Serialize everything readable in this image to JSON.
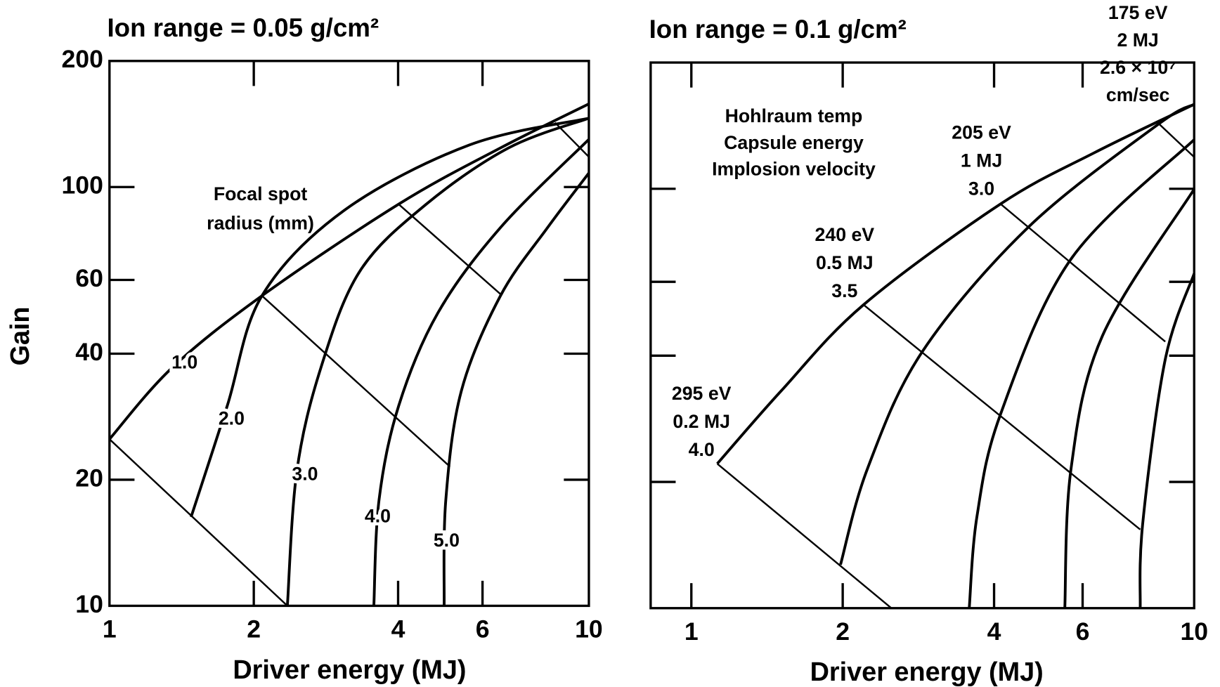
{
  "chart_data": [
    {
      "type": "line",
      "title": "Ion range = 0.05 g/cm²",
      "xlabel": "Driver energy (MJ)",
      "ylabel": "Gain",
      "xscale": "log",
      "yscale": "log",
      "xlim": [
        1,
        10
      ],
      "ylim": [
        10,
        200
      ],
      "xticks": [
        1,
        2,
        4,
        6,
        10
      ],
      "yticks": [
        10,
        20,
        40,
        60,
        100,
        200
      ],
      "ytick_labels": true,
      "color": "#000000",
      "series": [
        {
          "name": "1.0",
          "x": [
            1,
            1.35,
            2.08,
            4.01,
            6.54,
            10
          ],
          "values": [
            25,
            37,
            55,
            91,
            124,
            158
          ]
        },
        {
          "name": "2.0",
          "x": [
            1.48,
            1.76,
            2.08,
            3.09,
            5.63,
            10
          ],
          "values": [
            16.3,
            30,
            55,
            88,
            126,
            146
          ]
        },
        {
          "name": "3.0",
          "x": [
            2.35,
            2.46,
            2.76,
            3.33,
            4.58,
            6.8,
            10
          ],
          "values": [
            10,
            21,
            37,
            63,
            91,
            124,
            146
          ]
        },
        {
          "name": "4.0",
          "x": [
            3.56,
            3.65,
            4.01,
            4.84,
            6.54,
            10
          ],
          "values": [
            10,
            17.9,
            30,
            50,
            80,
            130
          ]
        },
        {
          "name": "5.0",
          "x": [
            4.99,
            5.03,
            5.42,
            6.54,
            8.2,
            10
          ],
          "values": [
            10,
            17.9,
            32.6,
            55,
            80,
            108
          ]
        }
      ],
      "cross_lines": [
        {
          "x": [
            1,
            2.35
          ],
          "values": [
            25,
            10
          ]
        },
        {
          "x": [
            2.08,
            5.13
          ],
          "values": [
            55,
            21.5
          ]
        },
        {
          "x": [
            4.01,
            6.54
          ],
          "values": [
            91,
            55.5
          ]
        },
        {
          "x": [
            8.5,
            10
          ],
          "values": [
            142.5,
            118
          ]
        }
      ],
      "annotations": [
        [
          "Focal spot",
          "radius (mm)"
        ]
      ]
    },
    {
      "type": "line",
      "title": "Ion range = 0.1 g/cm²",
      "xlabel": "Driver energy (MJ)",
      "xscale": "log",
      "yscale": "log",
      "xlim": [
        0.83,
        10
      ],
      "ylim": [
        10,
        200
      ],
      "xticks": [
        1,
        2,
        4,
        6,
        10
      ],
      "yticks": [
        10,
        20,
        40,
        60,
        100,
        200
      ],
      "ytick_labels": false,
      "color": "#000000",
      "series": [
        {
          "x": [
            1.126,
            1.51,
            2.2,
            4.12,
            6.34,
            10
          ],
          "values": [
            22.1,
            33,
            52.9,
            92,
            122,
            159
          ]
        },
        {
          "x": [
            1.98,
            2.24,
            2.88,
            4.68,
            8.45,
            10
          ],
          "values": [
            12.7,
            21.5,
            40.9,
            81,
            142,
            159
          ]
        },
        {
          "x": [
            3.57,
            3.7,
            4.12,
            5.69,
            10
          ],
          "values": [
            10,
            16.6,
            29,
            68,
            131
          ]
        },
        {
          "x": [
            5.53,
            5.69,
            6.57,
            10
          ],
          "values": [
            10,
            21.5,
            44.6,
            99.8
          ]
        },
        {
          "x": [
            7.81,
            7.9,
            8.76,
            10
          ],
          "values": [
            10,
            15.9,
            39.2,
            62.8
          ]
        }
      ],
      "cross_lines": [
        {
          "x": [
            1.126,
            2.5
          ],
          "values": [
            22.1,
            10
          ]
        },
        {
          "x": [
            2.2,
            7.81
          ],
          "values": [
            52.9,
            15.4
          ]
        },
        {
          "x": [
            4.12,
            8.76
          ],
          "values": [
            92,
            43.2
          ]
        },
        {
          "x": [
            8.45,
            10
          ],
          "values": [
            144,
            119
          ]
        }
      ],
      "annotations": [
        [
          "Hohlraum temp",
          "Capsule energy",
          "Implosion velocity"
        ],
        [
          "295 eV",
          "0.2 MJ",
          "4.0"
        ],
        [
          "240 eV",
          "0.5 MJ",
          "3.5"
        ],
        [
          "205 eV",
          "1 MJ",
          "3.0"
        ],
        [
          "175 eV",
          "2 MJ",
          "2.6 × 10⁷",
          "cm/sec"
        ]
      ]
    }
  ]
}
